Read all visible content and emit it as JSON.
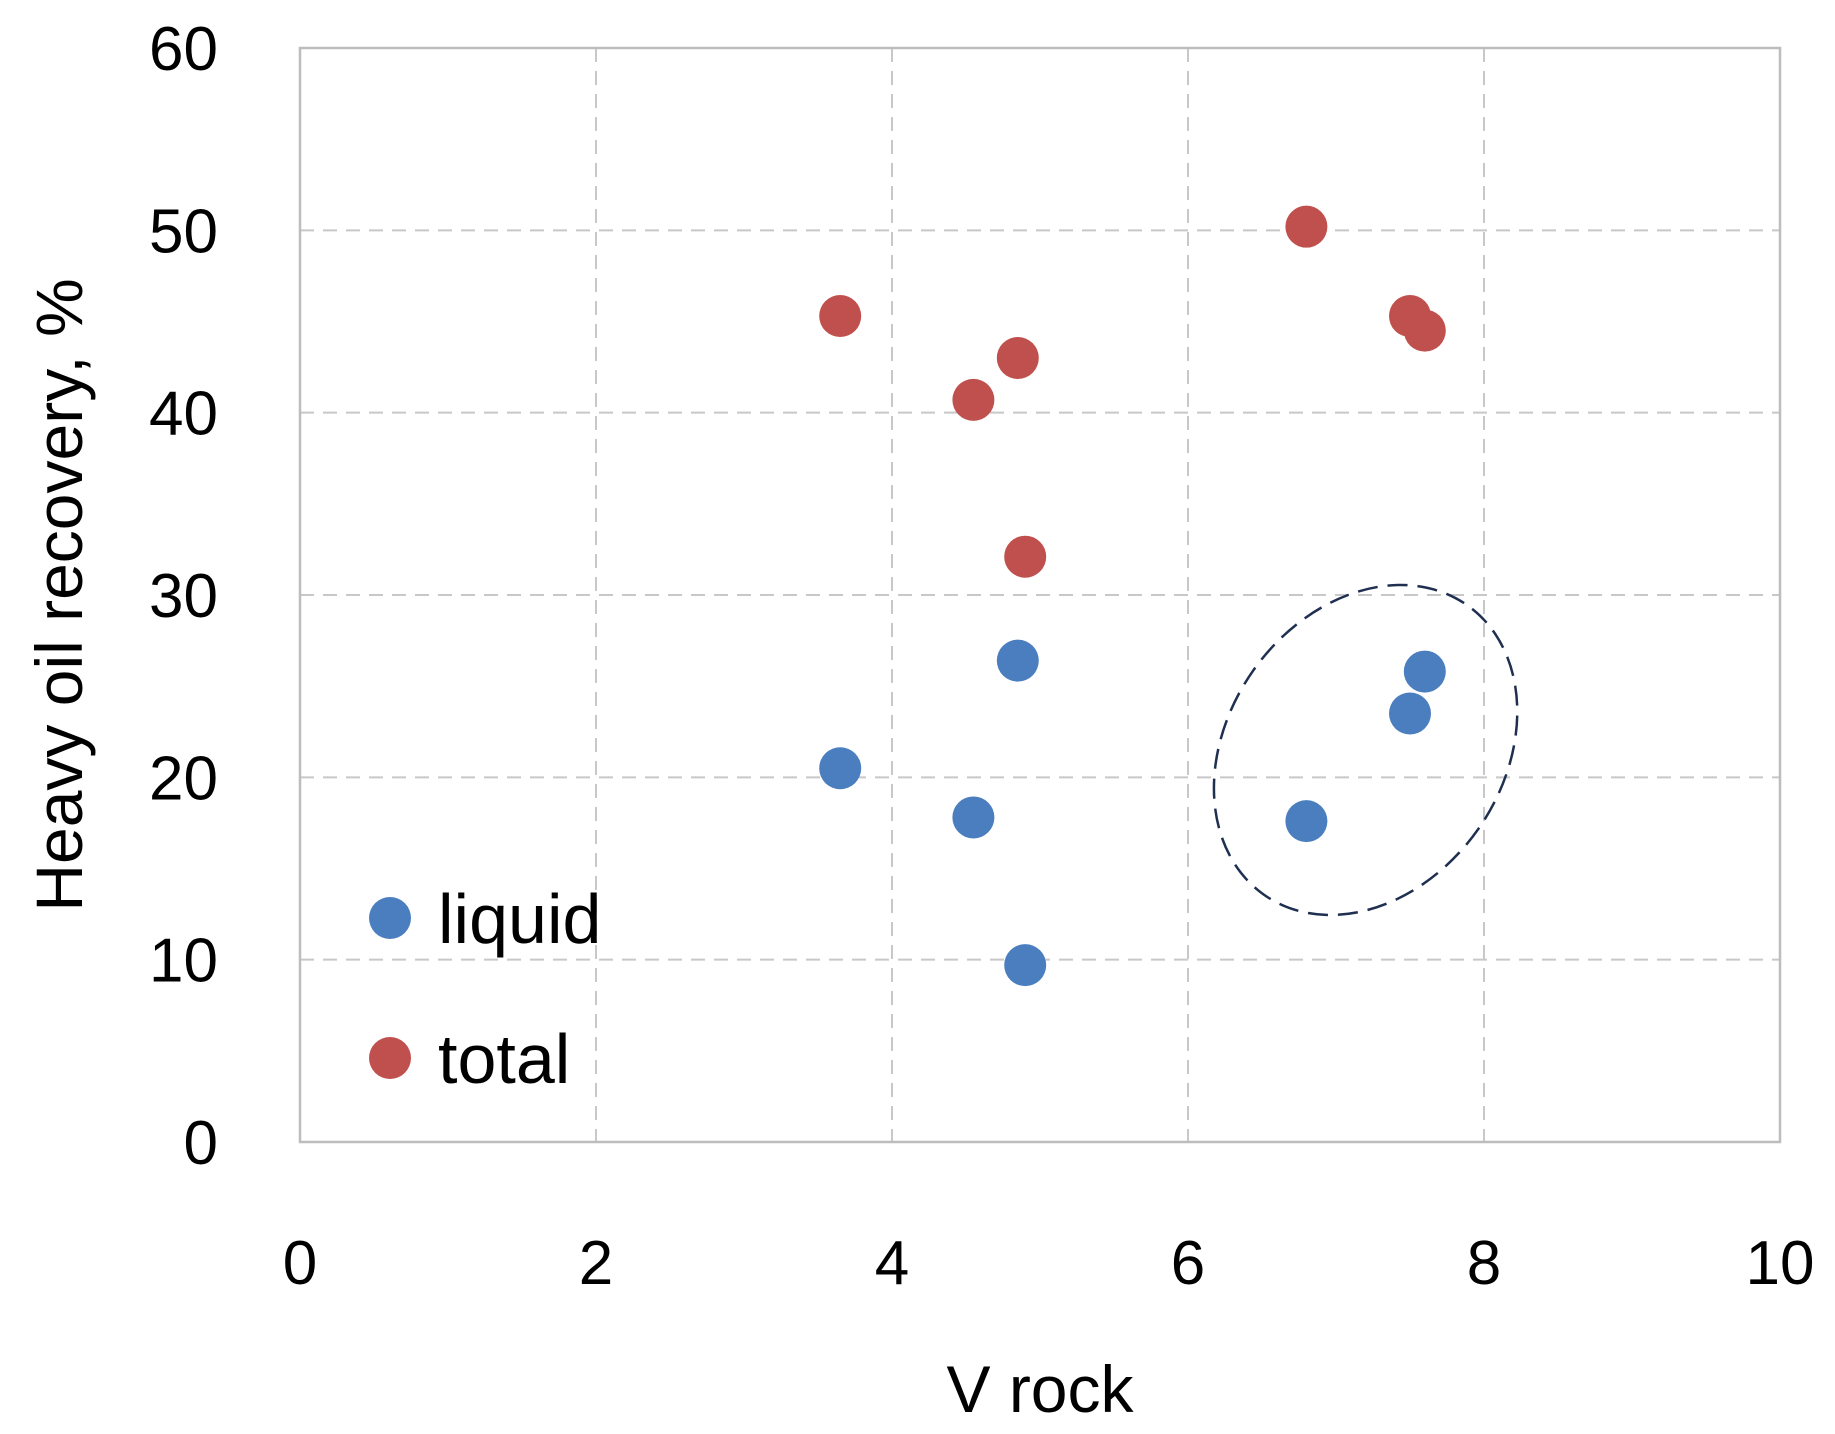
{
  "chart_data": {
    "type": "scatter",
    "title": "",
    "xlabel": "V rock",
    "ylabel": "Heavy oil recovery, %",
    "xlim": [
      0,
      10
    ],
    "ylim": [
      0,
      60
    ],
    "xticks": [
      0,
      2,
      4,
      6,
      8,
      10
    ],
    "yticks": [
      0,
      10,
      20,
      30,
      40,
      50,
      60
    ],
    "grid": true,
    "legend_position": "bottom-left",
    "series": [
      {
        "name": "liquid",
        "color": "#4a7ebf",
        "points": [
          {
            "x": 3.65,
            "y": 20.5
          },
          {
            "x": 4.55,
            "y": 17.8
          },
          {
            "x": 4.85,
            "y": 26.4
          },
          {
            "x": 4.9,
            "y": 9.7
          },
          {
            "x": 6.8,
            "y": 17.6
          },
          {
            "x": 7.5,
            "y": 23.5
          },
          {
            "x": 7.6,
            "y": 25.8
          }
        ]
      },
      {
        "name": "total",
        "color": "#c0504d",
        "points": [
          {
            "x": 3.65,
            "y": 45.3
          },
          {
            "x": 4.55,
            "y": 40.7
          },
          {
            "x": 4.85,
            "y": 43.0
          },
          {
            "x": 4.9,
            "y": 32.1
          },
          {
            "x": 6.8,
            "y": 50.2
          },
          {
            "x": 7.5,
            "y": 45.3
          },
          {
            "x": 7.6,
            "y": 44.5
          }
        ]
      }
    ],
    "annotations": [
      {
        "type": "dashed-ellipse",
        "color": "#1f2f50",
        "cx": 7.2,
        "cy": 21.5,
        "rx": 0.93,
        "ry": 9.7,
        "rotation_deg": 35
      }
    ]
  }
}
